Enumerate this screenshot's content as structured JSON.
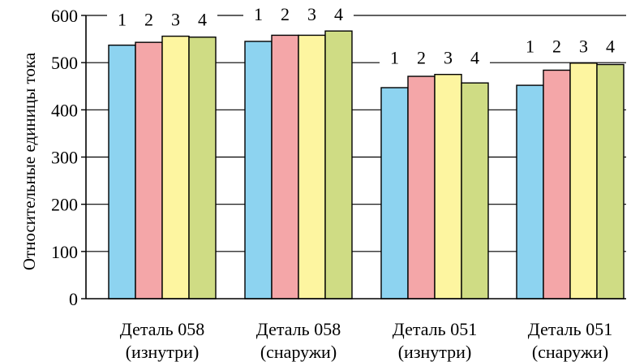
{
  "chart_data": {
    "type": "bar",
    "ylabel": "Относительные единицы тока",
    "xlabel": "",
    "ylim": [
      0,
      600
    ],
    "yticks": [
      0,
      100,
      200,
      300,
      400,
      500,
      600
    ],
    "grid": "horizontal",
    "categories": [
      [
        "Деталь 058",
        "(изнутри)"
      ],
      [
        "Деталь 058",
        "(снаружи)"
      ],
      [
        "Деталь 051",
        "(изнутри)"
      ],
      [
        "Деталь 051",
        "(снаружи)"
      ]
    ],
    "series": [
      {
        "name": "1",
        "color": "#8dd3f0",
        "values": [
          537,
          545,
          447,
          452
        ]
      },
      {
        "name": "2",
        "color": "#f4a6a8",
        "values": [
          543,
          558,
          471,
          484
        ]
      },
      {
        "name": "3",
        "color": "#fdf5a0",
        "values": [
          556,
          558,
          475,
          499
        ]
      },
      {
        "name": "4",
        "color": "#cfdc84",
        "values": [
          554,
          567,
          457,
          496
        ]
      }
    ]
  }
}
